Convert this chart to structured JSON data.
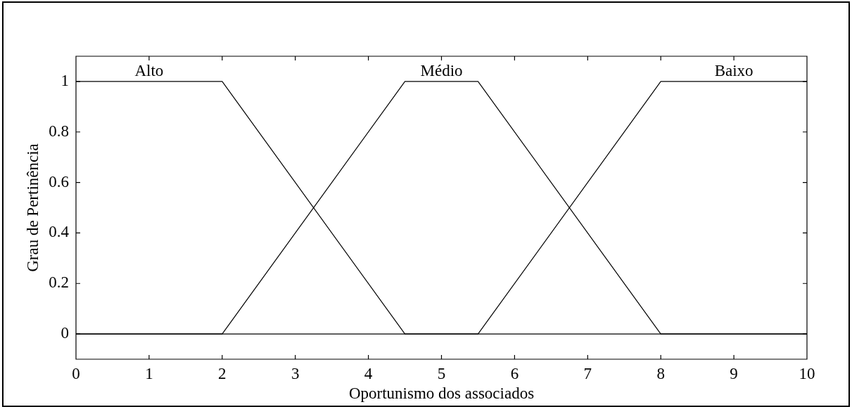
{
  "chart_data": {
    "type": "line",
    "xlabel": "Oportunismo dos associados",
    "ylabel": "Grau de Pertinência",
    "xlim": [
      0,
      10
    ],
    "ylim": [
      -0.1,
      1.1
    ],
    "xticks": [
      0,
      1,
      2,
      3,
      4,
      5,
      6,
      7,
      8,
      9,
      10
    ],
    "yticks": [
      0,
      0.2,
      0.4,
      0.6,
      0.8,
      1
    ],
    "grid": false,
    "marker": "none",
    "line_style": "solid",
    "series": [
      {
        "name": "Alto",
        "color": "#000000",
        "x": [
          0,
          2,
          4.5,
          10
        ],
        "values": [
          1,
          1,
          0,
          0
        ]
      },
      {
        "name": "Médio",
        "color": "#000000",
        "x": [
          0,
          2,
          4.5,
          5.5,
          8,
          10
        ],
        "values": [
          0,
          0,
          1,
          1,
          0,
          0
        ]
      },
      {
        "name": "Baixo",
        "color": "#000000",
        "x": [
          0,
          5.5,
          8,
          10
        ],
        "values": [
          0,
          0,
          1,
          1
        ]
      }
    ]
  }
}
